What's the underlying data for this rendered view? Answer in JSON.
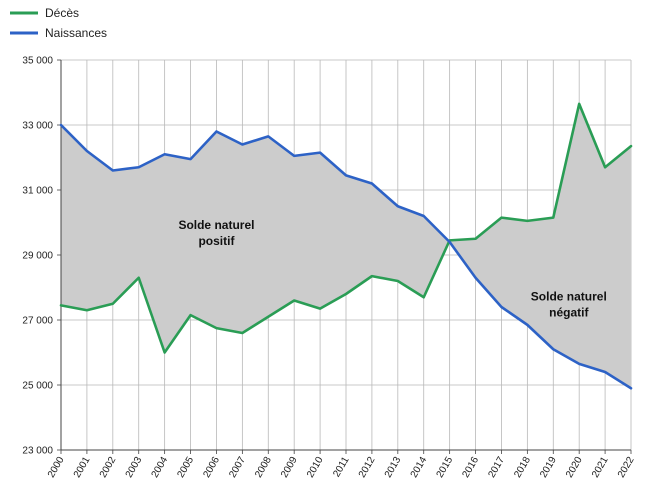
{
  "chart_data": {
    "type": "line",
    "title": "",
    "xlabel": "",
    "ylabel": "",
    "x": [
      "2000",
      "2001",
      "2002",
      "2003",
      "2004",
      "2005",
      "2006",
      "2007",
      "2008",
      "2009",
      "2010",
      "2011",
      "2012",
      "2013",
      "2014",
      "2015",
      "2016",
      "2017",
      "2018",
      "2019",
      "2020",
      "2021",
      "2022"
    ],
    "ylim": [
      23000,
      35000
    ],
    "yticks": [
      23000,
      25000,
      27000,
      29000,
      31000,
      33000,
      35000
    ],
    "ytick_labels": [
      "23 000",
      "25 000",
      "27 000",
      "29 000",
      "31 000",
      "33 000",
      "35 000"
    ],
    "grid": {
      "x": true,
      "y": true
    },
    "legend_position": "top-left",
    "series": [
      {
        "name": "Décès",
        "color": "#2a9d55",
        "values": [
          27450,
          27300,
          27500,
          28300,
          26000,
          27150,
          26750,
          26600,
          27100,
          27600,
          27350,
          27800,
          28350,
          28200,
          27700,
          29450,
          29500,
          30150,
          30050,
          30150,
          33650,
          31700,
          32350
        ]
      },
      {
        "name": "Naissances",
        "color": "#2d62c6",
        "values": [
          33000,
          32200,
          31600,
          31700,
          32100,
          31950,
          32800,
          32400,
          32650,
          32050,
          32150,
          31450,
          31200,
          30500,
          30200,
          29400,
          28300,
          27400,
          26850,
          26100,
          25650,
          25400,
          24900
        ]
      }
    ],
    "fill_color": "#cccccc",
    "annotations": [
      {
        "lines": [
          "Solde naturel",
          "positif"
        ],
        "x_index": 6,
        "y": 29800
      },
      {
        "lines": [
          "Solde naturel",
          "négatif"
        ],
        "x_index": 19.6,
        "y": 27600
      }
    ]
  }
}
